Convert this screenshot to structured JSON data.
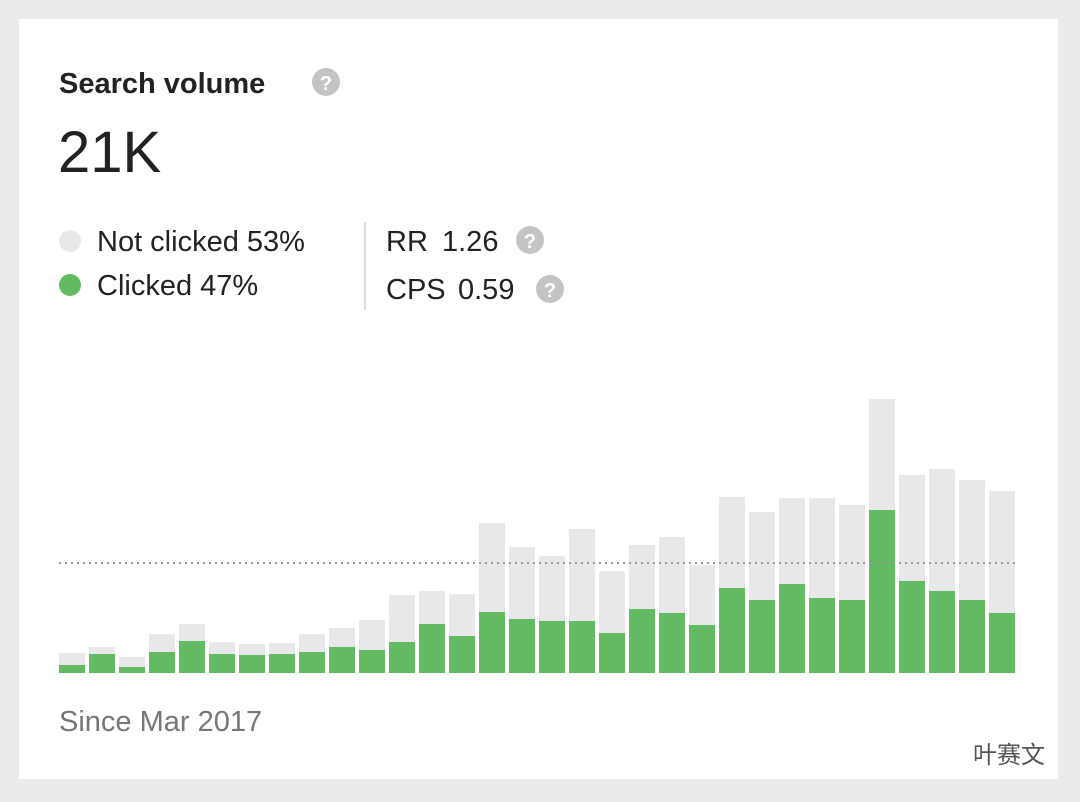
{
  "header": {
    "title": "Search volume",
    "help_icon": "?",
    "total": "21K"
  },
  "legend_shares": [
    "53%",
    "47%"
  ],
  "metrics": [
    {
      "label": "RR",
      "value": "1.26"
    },
    {
      "label": "CPS",
      "value": "0.59"
    }
  ],
  "footer": "Since Mar 2017",
  "watermark": "叶赛文",
  "chart_data": {
    "type": "stacked-bar",
    "categories": [
      null,
      null,
      null,
      null,
      null,
      null,
      null,
      null,
      null,
      null,
      null,
      null,
      null,
      null,
      null,
      null,
      null,
      null,
      null,
      null,
      null,
      null,
      null,
      null,
      null,
      null,
      null,
      null,
      null,
      null,
      null,
      null
    ],
    "series": [
      {
        "name": "Clicked",
        "color": "#62bb63",
        "values": [
          8,
          19,
          6,
          21,
          32,
          19,
          18,
          19,
          21,
          26,
          23,
          31,
          49,
          37,
          61,
          54,
          52,
          52,
          40,
          64,
          60,
          48,
          85,
          73,
          89,
          75,
          73,
          163,
          92,
          82,
          73,
          60
        ]
      },
      {
        "name": "Not clicked",
        "color": "#e8e8ea",
        "values": [
          12,
          7,
          10,
          18,
          17,
          12,
          11,
          11,
          18,
          19,
          30,
          47,
          33,
          42,
          89,
          72,
          65,
          92,
          62,
          64,
          76,
          60,
          91,
          88,
          86,
          100,
          95,
          111,
          106,
          122,
          120,
          122
        ]
      }
    ],
    "reference_line": 110,
    "ylim": [
      0,
      300
    ]
  }
}
